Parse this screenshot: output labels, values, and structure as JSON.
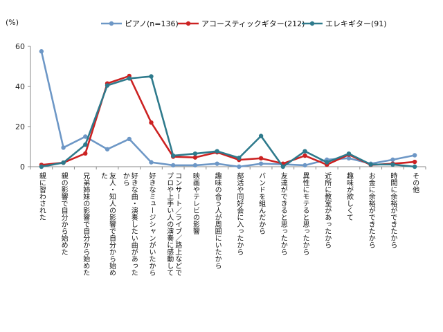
{
  "chart_data": {
    "type": "line",
    "ylabel": "(%)",
    "ylim": [
      0,
      60
    ],
    "yticks": [
      0,
      20,
      40,
      60
    ],
    "grid": false,
    "legend_position": "top",
    "categories": [
      "親に習わされた",
      "親の影響で自分から始めた",
      "兄弟姉妹の影響で自分から始めた",
      "友人・知人の影響で自分から始めた",
      "好きな曲・演奏したい曲があったから",
      "好きなミュージシャンがいたから",
      "コンサート／ライブ／路上などでプロや上手い人の演奏に感動して",
      "映画やテレビの影響",
      "趣味の合う人が周囲にいたから",
      "部活や同好会に入ったから",
      "バンドを組んだから",
      "友達ができると思ったから",
      "異性にモテると思ったから",
      "近所に教室があったから",
      "趣味が欲しくて",
      "お金に余裕ができたから",
      "時間に余裕ができたから",
      "その他"
    ],
    "series": [
      {
        "name": "ピアノ(n=136)",
        "color": "#6d97c6",
        "values": [
          57.5,
          9.5,
          15,
          8.7,
          13.8,
          2.2,
          0.7,
          0.7,
          1.5,
          0,
          1.5,
          1.2,
          0.7,
          3.5,
          4.2,
          1.5,
          3.5,
          5.7
        ]
      },
      {
        "name": "アコースティックギター(212)",
        "color": "#cc2222",
        "values": [
          0.9,
          2,
          6.6,
          41.5,
          45.2,
          22,
          5,
          4.6,
          7.2,
          3.4,
          4.2,
          1.5,
          5.5,
          1,
          6,
          0.9,
          1.5,
          2.4
        ]
      },
      {
        "name": "エレキギター(91)",
        "color": "#2e7a8c",
        "values": [
          0,
          2,
          11,
          40.5,
          44,
          45,
          5.5,
          6.5,
          7.7,
          4.4,
          15.3,
          0,
          7.7,
          2.2,
          6.5,
          1.1,
          1.1,
          0
        ]
      }
    ]
  }
}
